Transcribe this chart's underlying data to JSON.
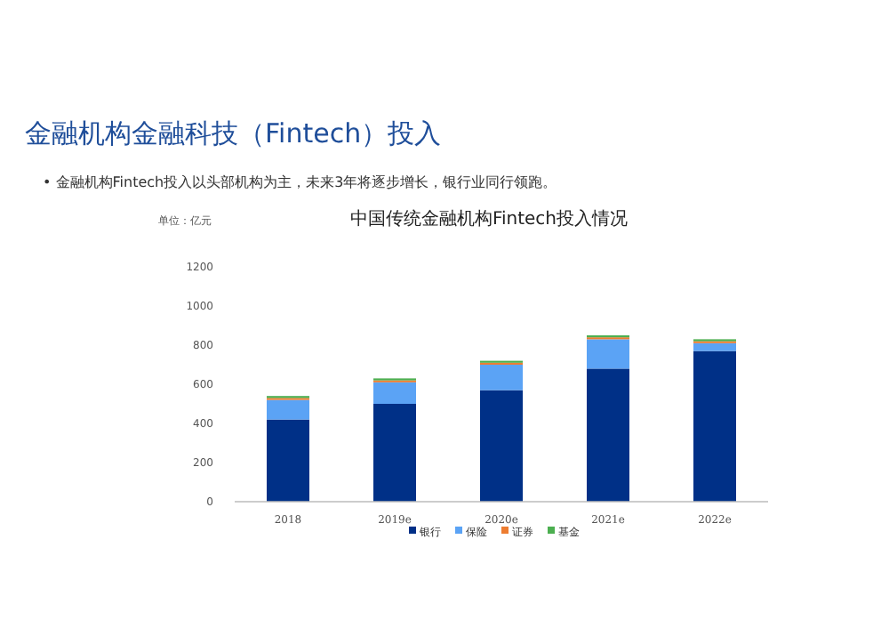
{
  "chart_data": {
    "type": "bar",
    "stacked": true,
    "title": "中国传统金融机构Fintech投入情况",
    "ylabel": "单位：亿元",
    "annotations": [
      "金融机构金融科技（Fintech）投入",
      "•  金融机构Fintech投入以头部机构为主，未来3年将逐步增长，银行业同行领跑。"
    ],
    "categories": [
      "2018",
      "2019e",
      "2020e",
      "2021e",
      "2022e"
    ],
    "series": [
      {
        "name": "银行",
        "color": "#003087",
        "values": [
          420,
          500,
          570,
          680,
          770
        ]
      },
      {
        "name": "保险",
        "color": "#5ba3f5",
        "values": [
          100,
          110,
          130,
          150,
          40
        ]
      },
      {
        "name": "证券",
        "color": "#ed7d31",
        "values": [
          10,
          10,
          10,
          10,
          10
        ]
      },
      {
        "name": "基金",
        "color": "#4caf50",
        "values": [
          10,
          10,
          10,
          10,
          10
        ]
      }
    ],
    "ylim": [
      0,
      1200
    ],
    "yticks": [
      0,
      200,
      400,
      600,
      800,
      1000,
      1200
    ],
    "legend": "bottom"
  }
}
